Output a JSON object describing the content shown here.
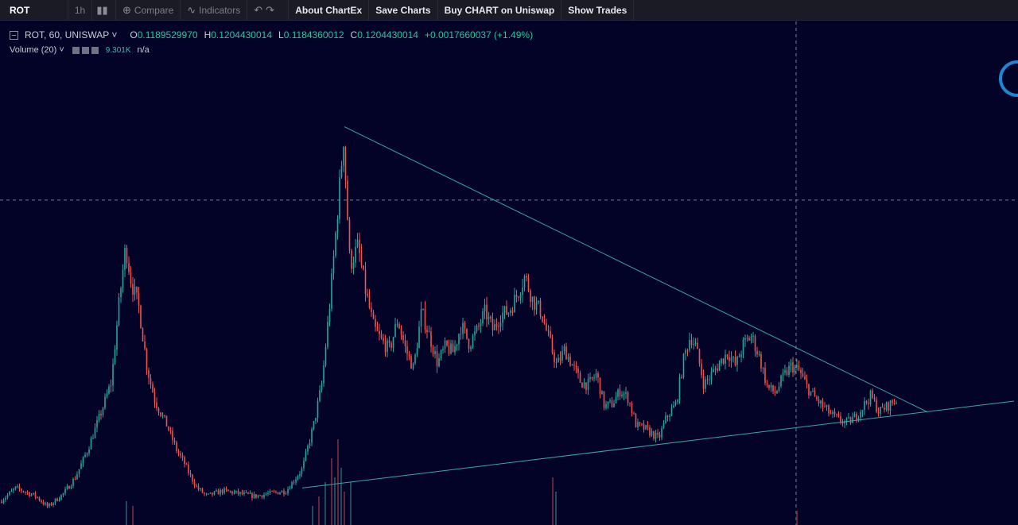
{
  "toolbar": {
    "symbol": "ROT",
    "interval": "1h",
    "compare": "Compare",
    "indicators": "Indicators",
    "about": "About ChartEx",
    "save": "Save Charts",
    "buy": "Buy CHART on Uniswap",
    "trades": "Show Trades"
  },
  "legend": {
    "symbol": "ROT, 60, UNISWAP",
    "o_label": "O",
    "o": "0.1189529970",
    "h_label": "H",
    "h": "0.1204430014",
    "l_label": "L",
    "l": "0.1184360012",
    "c_label": "C",
    "c": "0.1204430014",
    "change": "+0.0017660037 (+1.49%)"
  },
  "volume_legend": {
    "label": "Volume (20)",
    "value": "9.301K",
    "na": "n/a"
  },
  "colors": {
    "background": "#030327",
    "up": "#26a69a",
    "down": "#ef5350",
    "trendline": "#3aa6a6",
    "crosshair": "#7d7f92"
  },
  "chart_data": {
    "type": "candlestick",
    "title": "",
    "xlabel": "",
    "ylabel": "",
    "grid": false,
    "series": [
      {
        "description_path": [
          [
            0,
            0.031
          ],
          [
            20,
            0.036
          ],
          [
            45,
            0.033
          ],
          [
            60,
            0.029
          ],
          [
            80,
            0.034
          ],
          [
            95,
            0.04
          ],
          [
            110,
            0.05
          ],
          [
            125,
            0.062
          ],
          [
            140,
            0.075
          ],
          [
            150,
            0.105
          ],
          [
            158,
            0.125
          ],
          [
            165,
            0.112
          ],
          [
            175,
            0.102
          ],
          [
            185,
            0.08
          ],
          [
            195,
            0.068
          ],
          [
            210,
            0.059
          ],
          [
            222,
            0.05
          ],
          [
            232,
            0.045
          ],
          [
            240,
            0.04
          ],
          [
            248,
            0.036
          ],
          [
            260,
            0.033
          ],
          [
            280,
            0.035
          ],
          [
            300,
            0.034
          ],
          [
            320,
            0.033
          ],
          [
            340,
            0.034
          ],
          [
            360,
            0.035
          ],
          [
            380,
            0.043
          ],
          [
            395,
            0.06
          ],
          [
            405,
            0.075
          ],
          [
            415,
            0.105
          ],
          [
            425,
            0.14
          ],
          [
            432,
            0.165
          ],
          [
            440,
            0.118
          ],
          [
            450,
            0.125
          ],
          [
            460,
            0.108
          ],
          [
            470,
            0.095
          ],
          [
            480,
            0.09
          ],
          [
            490,
            0.087
          ],
          [
            500,
            0.098
          ],
          [
            510,
            0.087
          ],
          [
            520,
            0.08
          ],
          [
            530,
            0.101
          ],
          [
            540,
            0.092
          ],
          [
            550,
            0.082
          ],
          [
            560,
            0.088
          ],
          [
            570,
            0.086
          ],
          [
            580,
            0.096
          ],
          [
            590,
            0.089
          ],
          [
            600,
            0.094
          ],
          [
            610,
            0.101
          ],
          [
            620,
            0.094
          ],
          [
            630,
            0.1
          ],
          [
            640,
            0.101
          ],
          [
            650,
            0.107
          ],
          [
            660,
            0.114
          ],
          [
            670,
            0.105
          ],
          [
            680,
            0.101
          ],
          [
            690,
            0.091
          ],
          [
            700,
            0.081
          ],
          [
            710,
            0.087
          ],
          [
            720,
            0.081
          ],
          [
            730,
            0.075
          ],
          [
            740,
            0.074
          ],
          [
            750,
            0.078
          ],
          [
            760,
            0.066
          ],
          [
            770,
            0.067
          ],
          [
            780,
            0.072
          ],
          [
            790,
            0.069
          ],
          [
            800,
            0.059
          ],
          [
            810,
            0.058
          ],
          [
            820,
            0.056
          ],
          [
            828,
            0.054
          ],
          [
            838,
            0.062
          ],
          [
            850,
            0.067
          ],
          [
            860,
            0.084
          ],
          [
            868,
            0.092
          ],
          [
            875,
            0.088
          ],
          [
            885,
            0.074
          ],
          [
            895,
            0.078
          ],
          [
            905,
            0.082
          ],
          [
            915,
            0.086
          ],
          [
            925,
            0.081
          ],
          [
            935,
            0.089
          ],
          [
            945,
            0.092
          ],
          [
            955,
            0.084
          ],
          [
            965,
            0.073
          ],
          [
            975,
            0.071
          ],
          [
            985,
            0.077
          ],
          [
            995,
            0.081
          ],
          [
            1005,
            0.079
          ],
          [
            1015,
            0.073
          ],
          [
            1025,
            0.069
          ],
          [
            1035,
            0.066
          ],
          [
            1045,
            0.063
          ],
          [
            1055,
            0.061
          ],
          [
            1065,
            0.06
          ],
          [
            1075,
            0.062
          ],
          [
            1085,
            0.066
          ],
          [
            1095,
            0.07
          ],
          [
            1105,
            0.064
          ],
          [
            1115,
            0.066
          ],
          [
            1125,
            0.068
          ]
        ]
      }
    ],
    "trendlines": [
      {
        "from": [
          433,
          0.169
        ],
        "to": [
          1166,
          0.064
        ]
      },
      {
        "from": [
          380,
          0.036
        ],
        "to": [
          1275,
          0.068
        ]
      }
    ],
    "crosshair": {
      "x": 1001,
      "price": 0.142
    }
  }
}
